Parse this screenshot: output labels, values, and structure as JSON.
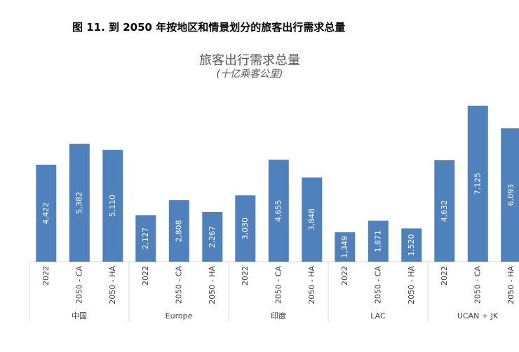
{
  "caption": "图 11. 到 2050 年按地区和情景划分的旅客出行需求总量",
  "chart_data": {
    "type": "bar",
    "title": "旅客出行需求总量",
    "subtitle": "(十亿乘客公里)",
    "bar_color": "#4f81bd",
    "ylim": [
      0,
      7125
    ],
    "grid": false,
    "groups": [
      {
        "name": "中国",
        "categories": [
          "2022",
          "2050 - CA",
          "2050 - HA"
        ],
        "values": [
          4422,
          5382,
          5110
        ],
        "labels": [
          "4,422",
          "5,382",
          "5,110"
        ]
      },
      {
        "name": "Europe",
        "categories": [
          "2022",
          "2050 - CA",
          "2050 - HA"
        ],
        "values": [
          2127,
          2808,
          2267
        ],
        "labels": [
          "2,127",
          "2,808",
          "2,267"
        ]
      },
      {
        "name": "印度",
        "categories": [
          "2022",
          "2050 - CA",
          "2050 - HA"
        ],
        "values": [
          3030,
          4655,
          3848
        ],
        "labels": [
          "3,030",
          "4,655",
          "3,848"
        ]
      },
      {
        "name": "LAC",
        "categories": [
          "2022",
          "2050 - CA",
          "2050 - HA"
        ],
        "values": [
          1349,
          1871,
          1520
        ],
        "labels": [
          "1,349",
          "1,871",
          "1,520"
        ]
      },
      {
        "name": "UCAN + JK",
        "categories": [
          "2022",
          "2050 - CA",
          "2050 - HA"
        ],
        "values": [
          4632,
          7125,
          6093
        ],
        "labels": [
          "4,632",
          "7,125",
          "6,093"
        ]
      }
    ]
  }
}
